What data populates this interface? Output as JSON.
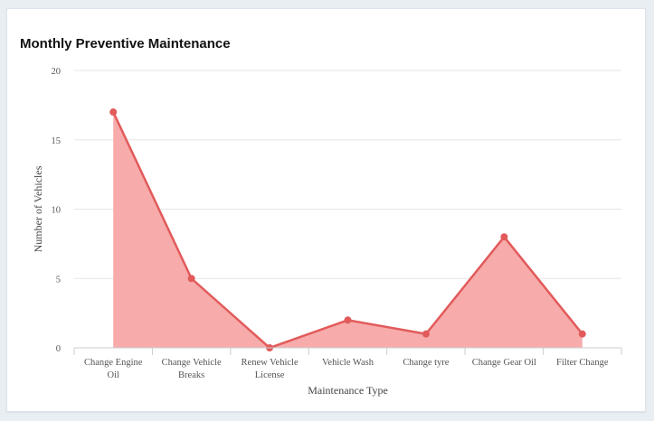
{
  "chart_data": {
    "type": "area",
    "title": "Monthly Preventive Maintenance",
    "xlabel": "Maintenance Type",
    "ylabel": "Number of Vehicles",
    "categories": [
      [
        "Change Engine",
        "Oil"
      ],
      [
        "Change Vehicle",
        "Breaks"
      ],
      [
        "Renew Vehicle",
        "License"
      ],
      [
        "Vehicle Wash"
      ],
      [
        "Change tyre"
      ],
      [
        "Change Gear Oil"
      ],
      [
        "Filter Change"
      ]
    ],
    "series": [
      {
        "values": [
          17,
          5,
          0,
          2,
          1,
          8,
          1
        ]
      }
    ],
    "ylim": [
      0,
      20
    ],
    "yticks": [
      0,
      5,
      10,
      15,
      20
    ],
    "grid": true,
    "legend": "none",
    "colors": {
      "line": "#e25a5a",
      "fill": "#f7a6a6",
      "point": "#e25a5a",
      "grid": "#e6e6e6"
    }
  }
}
